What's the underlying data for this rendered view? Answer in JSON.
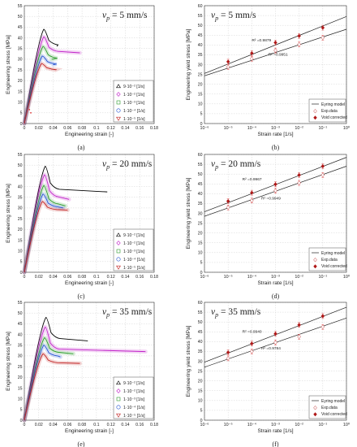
{
  "chart_data": [
    {
      "id": "a",
      "type": "line",
      "caption": "(a)",
      "speed_label": "v_p = 5 mm/s",
      "xlabel": "Engineering strain [-]",
      "ylabel": "Engineering stress [MPa]",
      "xlim": [
        0,
        0.18
      ],
      "ylim": [
        0,
        55
      ],
      "xticks": [
        "0",
        "0.02",
        "0.04",
        "0.06",
        "0.08",
        "0.1",
        "0.12",
        "0.14",
        "0.16",
        "0.18"
      ],
      "yticks": [
        "0",
        "5",
        "10",
        "15",
        "20",
        "25",
        "30",
        "35",
        "40",
        "45",
        "50",
        "55"
      ],
      "legend": [
        "9·10⁻² [1/s]",
        "1·10⁻² [1/s]",
        "1·10⁻³ [1/s]",
        "1·10⁻⁴ [1/s]",
        "1·10⁻⁵ [1/s]"
      ],
      "series": [
        {
          "peak_x": 0.027,
          "peak_y": 44,
          "end_x": 0.045,
          "end_y": 36,
          "color": "#000000",
          "band": false
        },
        {
          "peak_x": 0.027,
          "peak_y": 40.5,
          "end_x": 0.077,
          "end_y": 33,
          "color": "#c020c8",
          "band": true
        },
        {
          "peak_x": 0.026,
          "peak_y": 36,
          "end_x": 0.038,
          "end_y": 30,
          "color": "#2a9a2a",
          "band": true
        },
        {
          "peak_x": 0.025,
          "peak_y": 31.5,
          "end_x": 0.04,
          "end_y": 27.5,
          "color": "#2050d0",
          "band": true
        },
        {
          "peak_x": 0.024,
          "peak_y": 28,
          "end_x": 0.043,
          "end_y": 25,
          "color": "#c02020",
          "band": true
        }
      ],
      "markers": [
        [
          0.009,
          5
        ],
        [
          0.007,
          6.5
        ],
        [
          0.14,
          15
        ]
      ]
    },
    {
      "id": "b",
      "type": "scatter",
      "caption": "(b)",
      "speed_label": "v_p = 5 mm/s",
      "xlabel": "Strain rate [1/s]",
      "ylabel": "Engineering yield stress [MPa]",
      "xscale": "log",
      "xlim_exp": [
        -6,
        0
      ],
      "ylim": [
        0,
        60
      ],
      "xticks": [
        "10⁻⁶",
        "10⁻⁵",
        "10⁻⁴",
        "10⁻³",
        "10⁻²",
        "10⁻¹",
        "10⁰"
      ],
      "yticks": [
        "0",
        "5",
        "10",
        "15",
        "20",
        "25",
        "30",
        "35",
        "40",
        "45",
        "50",
        "55",
        "60"
      ],
      "legend": [
        "Eyring model",
        "Exp.data",
        "Void corrected"
      ],
      "annotations": [
        {
          "text": "R² =0.9879",
          "x_exp": -4.0,
          "y": 41.7
        },
        {
          "text": "R² =0.9951",
          "x_exp": -3.3,
          "y": 34.5
        }
      ],
      "x_exp": [
        -5,
        -4,
        -3,
        -2,
        -1
      ],
      "series": [
        {
          "values": [
            31.5,
            35.8,
            41.2,
            44.6,
            48.8
          ],
          "marker": "diamond-filled",
          "line": [
            25.5,
            54.5
          ]
        },
        {
          "values": [
            28.8,
            33.0,
            37.2,
            40.3,
            43.7
          ],
          "marker": "diamond-open",
          "line": [
            24.3,
            48.0
          ]
        }
      ]
    },
    {
      "id": "c",
      "type": "line",
      "caption": "(c)",
      "speed_label": "v_p = 20 mm/s",
      "xlabel": "Engineering strain [-]",
      "ylabel": "Engineering stress [MPa]",
      "xlim": [
        0,
        0.18
      ],
      "ylim": [
        0,
        55
      ],
      "xticks": [
        "0",
        "0.02",
        "0.04",
        "0.06",
        "0.08",
        "0.1",
        "0.12",
        "0.14",
        "0.16",
        "0.18"
      ],
      "yticks": [
        "0",
        "5",
        "10",
        "15",
        "20",
        "25",
        "30",
        "35",
        "40",
        "45",
        "50",
        "55"
      ],
      "legend": [
        "9·10⁻² [1/s]",
        "1·10⁻² [1/s]",
        "1·10⁻³ [1/s]",
        "1·10⁻⁴ [1/s]",
        "1·10⁻⁵ [1/s]"
      ],
      "series": [
        {
          "peak_x": 0.029,
          "peak_y": 49.5,
          "end_x": 0.115,
          "end_y": 37.5,
          "color": "#000000",
          "band": false
        },
        {
          "peak_x": 0.028,
          "peak_y": 45.5,
          "end_x": 0.062,
          "end_y": 34,
          "color": "#c020c8",
          "band": true
        },
        {
          "peak_x": 0.027,
          "peak_y": 40.5,
          "end_x": 0.057,
          "end_y": 31,
          "color": "#2a9a2a",
          "band": true
        },
        {
          "peak_x": 0.026,
          "peak_y": 36.5,
          "end_x": 0.054,
          "end_y": 30,
          "color": "#2050d0",
          "band": true
        },
        {
          "peak_x": 0.025,
          "peak_y": 33,
          "end_x": 0.06,
          "end_y": 29,
          "color": "#c02020",
          "band": true
        }
      ],
      "markers": []
    },
    {
      "id": "d",
      "type": "scatter",
      "caption": "(d)",
      "speed_label": "v_p = 20 mm/s",
      "xlabel": "Strain rate [1/s]",
      "ylabel": "Engineering yield stress [MPa]",
      "xscale": "log",
      "xlim_exp": [
        -6,
        0
      ],
      "ylim": [
        0,
        60
      ],
      "xticks": [
        "10⁻⁶",
        "10⁻⁵",
        "10⁻⁴",
        "10⁻³",
        "10⁻²",
        "10⁻¹",
        "10⁰"
      ],
      "yticks": [
        "0",
        "5",
        "10",
        "15",
        "20",
        "25",
        "30",
        "35",
        "40",
        "45",
        "50",
        "55",
        "60"
      ],
      "legend": [
        "Eyring model",
        "Exp.data",
        "Void corrected"
      ],
      "annotations": [
        {
          "text": "R² =0.9967",
          "x_exp": -4.4,
          "y": 46.7
        },
        {
          "text": "R² =0.9949",
          "x_exp": -3.6,
          "y": 37.0
        }
      ],
      "x_exp": [
        -5,
        -4,
        -3,
        -2,
        -1
      ],
      "series": [
        {
          "values": [
            36.2,
            40.5,
            44.8,
            49.5,
            54.0
          ],
          "marker": "diamond-filled",
          "line": [
            30.8,
            58.5
          ]
        },
        {
          "values": [
            33.0,
            36.5,
            41.5,
            45.5,
            49.5
          ],
          "marker": "diamond-open",
          "line": [
            28.5,
            54.0
          ]
        }
      ]
    },
    {
      "id": "e",
      "type": "line",
      "caption": "(e)",
      "speed_label": "v_p = 35 mm/s",
      "xlabel": "Engineering strain [-]",
      "ylabel": "Engineering stress [MPa]",
      "xlim": [
        0,
        0.18
      ],
      "ylim": [
        0,
        55
      ],
      "xticks": [
        "0",
        "0.02",
        "0.04",
        "0.06",
        "0.08",
        "0.1",
        "0.12",
        "0.14",
        "0.16",
        "0.18"
      ],
      "yticks": [
        "0",
        "5",
        "10",
        "15",
        "20",
        "25",
        "30",
        "35",
        "40",
        "45",
        "50",
        "55"
      ],
      "legend": [
        "9·10⁻² [1/s]",
        "1·10⁻² [1/s]",
        "1·10⁻³ [1/s]",
        "1·10⁻⁴ [1/s]",
        "1·10⁻⁵ [1/s]"
      ],
      "series": [
        {
          "peak_x": 0.03,
          "peak_y": 48,
          "end_x": 0.088,
          "end_y": 37,
          "color": "#000000",
          "band": false
        },
        {
          "peak_x": 0.029,
          "peak_y": 43.5,
          "end_x": 0.168,
          "end_y": 32,
          "color": "#c020c8",
          "band": true
        },
        {
          "peak_x": 0.028,
          "peak_y": 38.5,
          "end_x": 0.068,
          "end_y": 31,
          "color": "#2a9a2a",
          "band": true
        },
        {
          "peak_x": 0.027,
          "peak_y": 35,
          "end_x": 0.05,
          "end_y": 29.5,
          "color": "#2050d0",
          "band": true
        },
        {
          "peak_x": 0.026,
          "peak_y": 31,
          "end_x": 0.077,
          "end_y": 26.5,
          "color": "#c02020",
          "band": true
        }
      ],
      "markers": []
    },
    {
      "id": "f",
      "type": "scatter",
      "caption": "(f)",
      "speed_label": "v_p = 35 mm/s",
      "xlabel": "Strain rate [1/s]",
      "ylabel": "Engineering yield stress [MPa]",
      "xscale": "log",
      "xlim_exp": [
        -6,
        0
      ],
      "ylim": [
        0,
        60
      ],
      "xticks": [
        "10⁻⁶",
        "10⁻⁵",
        "10⁻⁴",
        "10⁻³",
        "10⁻²",
        "10⁻¹",
        "10⁰"
      ],
      "yticks": [
        "0",
        "5",
        "10",
        "15",
        "20",
        "25",
        "30",
        "35",
        "40",
        "45",
        "50",
        "55",
        "60"
      ],
      "legend": [
        "Eyring model",
        "Exp.data",
        "Void corrected"
      ],
      "annotations": [
        {
          "text": "R² =0.9940",
          "x_exp": -4.4,
          "y": 44.5
        },
        {
          "text": "R² =0.9784",
          "x_exp": -3.6,
          "y": 36.0
        }
      ],
      "x_exp": [
        -5,
        -4,
        -3,
        -2,
        -1
      ],
      "series": [
        {
          "values": [
            34.5,
            39.0,
            44.0,
            48.5,
            53.0
          ],
          "marker": "diamond-filled",
          "line": [
            29.5,
            57.5
          ]
        },
        {
          "values": [
            31.5,
            35.0,
            39.5,
            42.5,
            47.5
          ],
          "marker": "diamond-open",
          "line": [
            27.0,
            52.0
          ]
        }
      ]
    }
  ]
}
